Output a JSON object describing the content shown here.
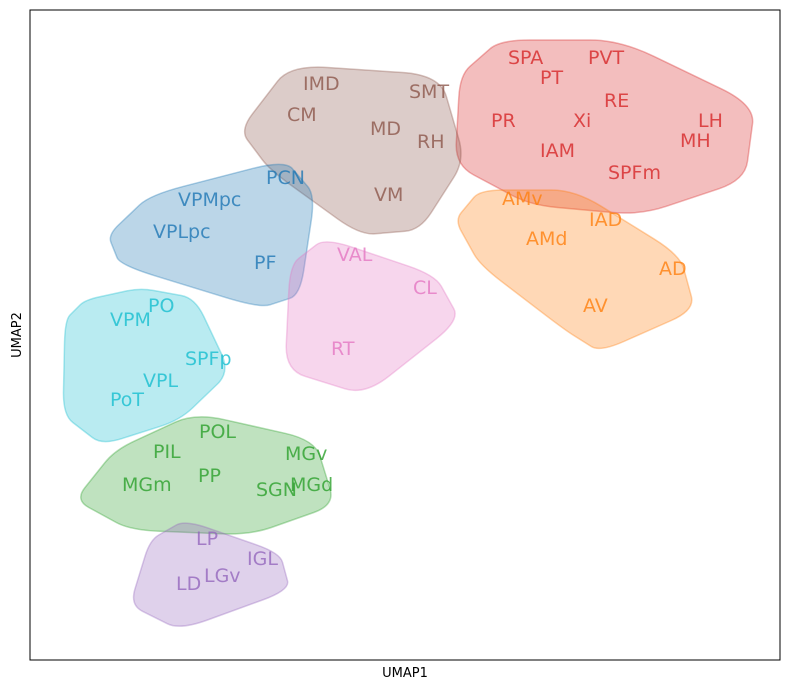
{
  "chart_data": {
    "type": "scatter",
    "xlabel": "UMAP1",
    "ylabel": "UMAP2",
    "xlim": [
      0,
      750
    ],
    "ylim": [
      -650,
      0
    ],
    "grid": false,
    "groups": [
      {
        "color": "#d62728",
        "hull": [
          [
            470,
            30
          ],
          [
            590,
            30
          ],
          [
            725,
            95
          ],
          [
            715,
            170
          ],
          [
            610,
            205
          ],
          [
            500,
            195
          ],
          [
            425,
            155
          ],
          [
            430,
            65
          ]
        ],
        "labels": [
          {
            "text": "SPA",
            "x": 478,
            "y": -47
          },
          {
            "text": "PVT",
            "x": 558,
            "y": -47
          },
          {
            "text": "PT",
            "x": 510,
            "y": -67
          },
          {
            "text": "RE",
            "x": 574,
            "y": -90
          },
          {
            "text": "PR",
            "x": 461,
            "y": -110
          },
          {
            "text": "Xi",
            "x": 543,
            "y": -110
          },
          {
            "text": "LH",
            "x": 668,
            "y": -110
          },
          {
            "text": "MH",
            "x": 650,
            "y": -130
          },
          {
            "text": "IAM",
            "x": 510,
            "y": -140
          },
          {
            "text": "SPFm",
            "x": 578,
            "y": -162
          }
        ]
      },
      {
        "color": "#8c564b",
        "hull": [
          [
            260,
            55
          ],
          [
            410,
            65
          ],
          [
            435,
            150
          ],
          [
            390,
            220
          ],
          [
            330,
            225
          ],
          [
            240,
            160
          ],
          [
            210,
            120
          ]
        ],
        "labels": [
          {
            "text": "IMD",
            "x": 273,
            "y": -73
          },
          {
            "text": "SMT",
            "x": 379,
            "y": -81
          },
          {
            "text": "CM",
            "x": 257,
            "y": -104
          },
          {
            "text": "MD",
            "x": 340,
            "y": -118
          },
          {
            "text": "RH",
            "x": 387,
            "y": -131
          },
          {
            "text": "VM",
            "x": 344,
            "y": -184
          }
        ]
      },
      {
        "color": "#1f77b4",
        "hull": [
          [
            120,
            185
          ],
          [
            255,
            150
          ],
          [
            285,
            185
          ],
          [
            270,
            285
          ],
          [
            230,
            298
          ],
          [
            90,
            255
          ],
          [
            78,
            225
          ]
        ],
        "labels": [
          {
            "text": "PCN",
            "x": 236,
            "y": -167
          },
          {
            "text": "VPMpc",
            "x": 148,
            "y": -189
          },
          {
            "text": "VPLpc",
            "x": 123,
            "y": -221
          },
          {
            "text": "PF",
            "x": 224,
            "y": -252
          }
        ]
      },
      {
        "color": "#ff7f0e",
        "hull": [
          [
            450,
            180
          ],
          [
            545,
            180
          ],
          [
            650,
            245
          ],
          [
            665,
            300
          ],
          [
            570,
            342
          ],
          [
            535,
            320
          ],
          [
            450,
            255
          ],
          [
            425,
            210
          ]
        ],
        "labels": [
          {
            "text": "AMv",
            "x": 472,
            "y": -188
          },
          {
            "text": "IAD",
            "x": 559,
            "y": -209
          },
          {
            "text": "AMd",
            "x": 496,
            "y": -228
          },
          {
            "text": "AD",
            "x": 629,
            "y": -258
          },
          {
            "text": "AV",
            "x": 553,
            "y": -295
          }
        ]
      },
      {
        "color": "#e377c2",
        "hull": [
          [
            295,
            228
          ],
          [
            405,
            265
          ],
          [
            430,
            310
          ],
          [
            335,
            385
          ],
          [
            255,
            360
          ],
          [
            260,
            255
          ]
        ],
        "labels": [
          {
            "text": "VAL",
            "x": 307,
            "y": -244
          },
          {
            "text": "CL",
            "x": 383,
            "y": -277
          },
          {
            "text": "RT",
            "x": 301,
            "y": -338
          }
        ]
      },
      {
        "color": "#17becf",
        "hull": [
          [
            110,
            278
          ],
          [
            165,
            288
          ],
          [
            200,
            362
          ],
          [
            150,
            410
          ],
          [
            72,
            435
          ],
          [
            33,
            405
          ],
          [
            35,
            310
          ],
          [
            55,
            290
          ]
        ],
        "labels": [
          {
            "text": "PO",
            "x": 118,
            "y": -295
          },
          {
            "text": "VPM",
            "x": 80,
            "y": -309
          },
          {
            "text": "SPFp",
            "x": 155,
            "y": -348
          },
          {
            "text": "VPL",
            "x": 113,
            "y": -370
          },
          {
            "text": "PoT",
            "x": 80,
            "y": -389
          }
        ]
      },
      {
        "color": "#2ca02c",
        "hull": [
          [
            165,
            403
          ],
          [
            285,
            430
          ],
          [
            305,
            495
          ],
          [
            220,
            525
          ],
          [
            100,
            520
          ],
          [
            45,
            490
          ],
          [
            85,
            440
          ]
        ],
        "labels": [
          {
            "text": "POL",
            "x": 169,
            "y": -421
          },
          {
            "text": "PIL",
            "x": 123,
            "y": -441
          },
          {
            "text": "MGv",
            "x": 255,
            "y": -443
          },
          {
            "text": "PP",
            "x": 168,
            "y": -465
          },
          {
            "text": "MGm",
            "x": 92,
            "y": -474
          },
          {
            "text": "MGd",
            "x": 260,
            "y": -474
          },
          {
            "text": "SGN",
            "x": 226,
            "y": -479
          }
        ]
      },
      {
        "color": "#9467bd",
        "hull": [
          [
            155,
            510
          ],
          [
            250,
            543
          ],
          [
            260,
            580
          ],
          [
            150,
            620
          ],
          [
            100,
            595
          ],
          [
            120,
            530
          ]
        ],
        "labels": [
          {
            "text": "LP",
            "x": 166,
            "y": -528
          },
          {
            "text": "IGL",
            "x": 217,
            "y": -548
          },
          {
            "text": "LGv",
            "x": 174,
            "y": -565
          },
          {
            "text": "LD",
            "x": 146,
            "y": -573
          }
        ]
      }
    ]
  }
}
